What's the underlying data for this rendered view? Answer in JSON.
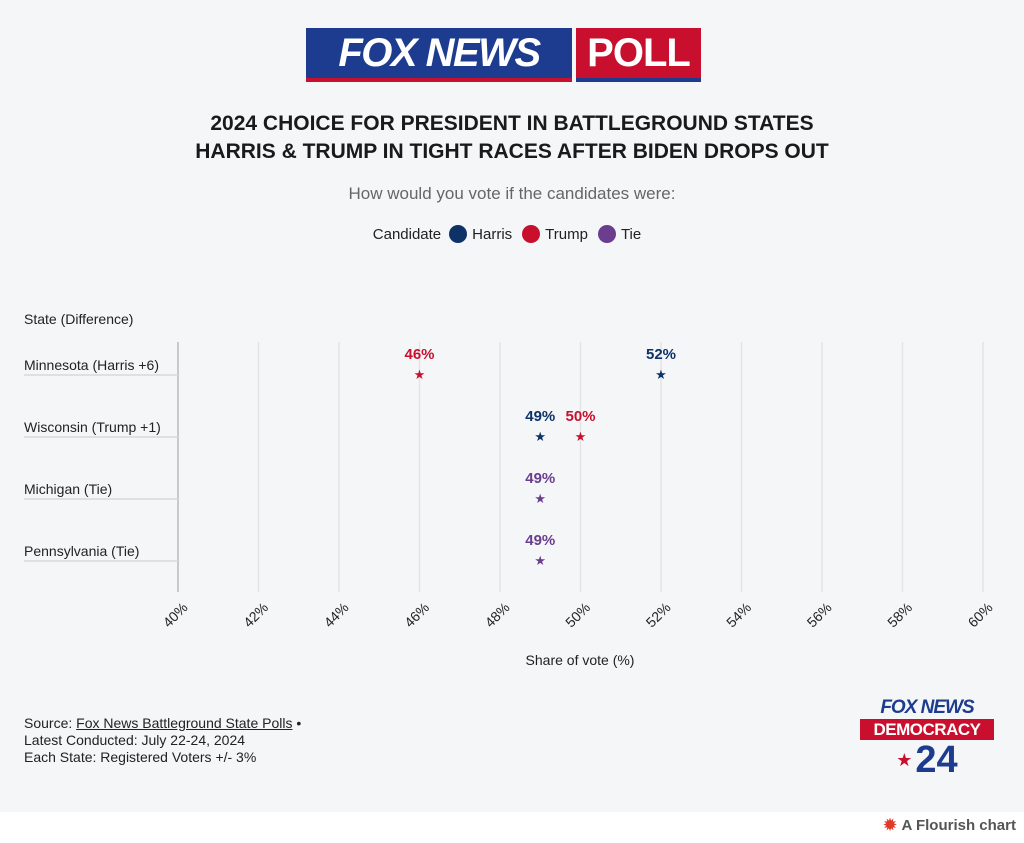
{
  "header": {
    "logo_left": "FOX NEWS",
    "logo_right": "POLL",
    "title_line1": "2024 CHOICE FOR PRESIDENT IN BATTLEGROUND STATES",
    "title_line2": "HARRIS & TRUMP IN TIGHT RACES AFTER BIDEN DROPS OUT",
    "subtitle": "How would you vote if the candidates were:"
  },
  "legend": {
    "title": "Candidate",
    "items": [
      {
        "label": "Harris",
        "color": "#0d3268"
      },
      {
        "label": "Trump",
        "color": "#c8102e"
      },
      {
        "label": "Tie",
        "color": "#6b3d8f"
      }
    ]
  },
  "chart_data": {
    "type": "scatter",
    "y_axis_title": "State (Difference)",
    "xlabel": "Share of vote (%)",
    "xlim": [
      40,
      60
    ],
    "x_ticks": [
      "40%",
      "42%",
      "44%",
      "46%",
      "48%",
      "50%",
      "52%",
      "54%",
      "56%",
      "58%",
      "60%"
    ],
    "x_tick_values": [
      40,
      42,
      44,
      46,
      48,
      50,
      52,
      54,
      56,
      58,
      60
    ],
    "categories": [
      "Minnesota (Harris +6)",
      "Wisconsin (Trump +1)",
      "Michigan (Tie)",
      "Pennsylvania (Tie)"
    ],
    "series": [
      {
        "name": "Harris",
        "color": "#0d3268",
        "points": [
          {
            "state": 0,
            "value": 52,
            "label": "52%"
          },
          {
            "state": 1,
            "value": 49,
            "label": "49%"
          }
        ]
      },
      {
        "name": "Trump",
        "color": "#c8102e",
        "points": [
          {
            "state": 0,
            "value": 46,
            "label": "46%"
          },
          {
            "state": 1,
            "value": 50,
            "label": "50%"
          }
        ]
      },
      {
        "name": "Tie",
        "color": "#6b3d8f",
        "points": [
          {
            "state": 2,
            "value": 49,
            "label": "49%"
          },
          {
            "state": 3,
            "value": 49,
            "label": "49%"
          }
        ]
      }
    ],
    "grid": true,
    "legend_position": "top-center"
  },
  "source": {
    "prefix": "Source: ",
    "link_text": "Fox News Battleground State Polls",
    "suffix": " •",
    "line2": "Latest Conducted: July 22-24, 2024",
    "line3": "Each State: Registered Voters +/- 3%"
  },
  "footer_logo": {
    "line1": "FOX NEWS",
    "line2": "DEMOCRACY",
    "line3": "24"
  },
  "flourish_label": "A Flourish chart"
}
